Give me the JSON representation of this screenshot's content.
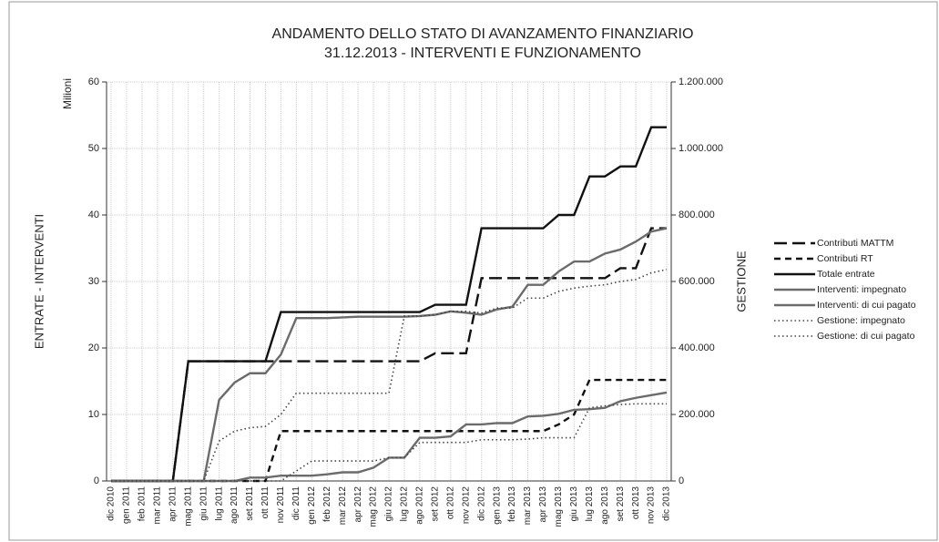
{
  "chart_data": {
    "type": "line",
    "title": [
      "ANDAMENTO DELLO STATO DI AVANZAMENTO FINANZIARIO",
      "31.12.2013 - INTERVENTI E FUNZIONAMENTO"
    ],
    "y_label": "ENTRATE - INTERVENTI",
    "y_unit": "Milioni",
    "y2_label": "GESTIONE",
    "categories": [
      "dic 2010",
      "gen 2011",
      "feb 2011",
      "mar 2011",
      "apr 2011",
      "mag 2011",
      "giu 2011",
      "lug 2011",
      "ago 2011",
      "set 2011",
      "ott 2011",
      "nov 2011",
      "dic 2011",
      "gen 2012",
      "feb 2012",
      "mar 2012",
      "apr 2012",
      "mag 2012",
      "giu 2012",
      "lug 2012",
      "ago 2012",
      "set 2012",
      "ott 2012",
      "nov 2012",
      "dic 2012",
      "gen 2013",
      "feb 2013",
      "mar 2013",
      "apr 2013",
      "mag 2013",
      "giu 2013",
      "lug 2013",
      "ago 2013",
      "set 2013",
      "ott 2013",
      "nov 2013",
      "dic 2013"
    ],
    "ylim": [
      0,
      60
    ],
    "yticks": [
      0,
      10,
      20,
      30,
      40,
      50,
      60
    ],
    "y2lim": [
      0,
      1200000
    ],
    "y2ticks": [
      0,
      {
        "value": 200000,
        "label": "200.000"
      },
      {
        "value": 400000,
        "label": "400.000"
      },
      {
        "value": 600000,
        "label": "600.000"
      },
      {
        "value": 800000,
        "label": "800.000"
      },
      {
        "value": 1000000,
        "label": "1.000.000"
      },
      {
        "value": 1200000,
        "label": "1.200.000"
      }
    ],
    "grid": true,
    "legend": "right",
    "series": [
      {
        "name": "Contributi MATTM",
        "color": "#111111",
        "dash": "long",
        "values": [
          0,
          0,
          0,
          0,
          0,
          18,
          18,
          18,
          18,
          18,
          18,
          18,
          18,
          18,
          18,
          18,
          18,
          18,
          18,
          18,
          18,
          19.2,
          19.2,
          19.2,
          30.5,
          30.5,
          30.5,
          30.5,
          30.5,
          30.5,
          30.5,
          30.5,
          30.5,
          32,
          32,
          38,
          38
        ]
      },
      {
        "name": "Contributi RT",
        "color": "#111111",
        "dash": "short",
        "values": [
          0,
          0,
          0,
          0,
          0,
          0,
          0,
          0,
          0,
          0,
          0,
          7.5,
          7.5,
          7.5,
          7.5,
          7.5,
          7.5,
          7.5,
          7.5,
          7.5,
          7.5,
          7.5,
          7.5,
          7.5,
          7.5,
          7.5,
          7.5,
          7.5,
          7.5,
          8.5,
          10,
          15.2,
          15.2,
          15.2,
          15.2,
          15.2,
          15.2
        ]
      },
      {
        "name": "Totale entrate",
        "color": "#111111",
        "dash": "solid",
        "values": [
          0,
          0,
          0,
          0,
          0,
          18,
          18,
          18,
          18,
          18,
          18,
          25.4,
          25.4,
          25.4,
          25.4,
          25.4,
          25.4,
          25.4,
          25.4,
          25.4,
          25.4,
          26.5,
          26.5,
          26.5,
          38,
          38,
          38,
          38,
          38,
          40,
          40,
          45.8,
          45.8,
          47.3,
          47.3,
          53.2,
          53.2
        ]
      },
      {
        "name": "Interventi: impegnato",
        "color": "#6b6b6b",
        "dash": "solid",
        "values": [
          0,
          0,
          0,
          0,
          0,
          0,
          0,
          12.2,
          14.8,
          16.2,
          16.2,
          19,
          24.5,
          24.5,
          24.5,
          24.6,
          24.7,
          24.7,
          24.7,
          24.7,
          24.8,
          25,
          25.5,
          25.3,
          25,
          25.8,
          26.2,
          29.5,
          29.5,
          31.5,
          33,
          33,
          34.2,
          34.8,
          36,
          37.5,
          38
        ]
      },
      {
        "name": "Interventi: di cui pagato",
        "color": "#6b6b6b",
        "dash": "solid",
        "values": [
          0,
          0,
          0,
          0,
          0,
          0,
          0,
          0,
          0,
          0.5,
          0.5,
          0.8,
          0.8,
          0.8,
          1,
          1.3,
          1.3,
          2,
          3.5,
          3.5,
          6.5,
          6.5,
          6.7,
          8.5,
          8.5,
          8.7,
          8.7,
          9.7,
          9.8,
          10.1,
          10.7,
          10.8,
          11,
          12,
          12.5,
          12.9,
          13.3
        ]
      },
      {
        "name": "Gestione: impegnato",
        "color": "#444444",
        "dash": "dot",
        "axis": "y2",
        "values": [
          0,
          0,
          0,
          0,
          0,
          0,
          0,
          120000,
          150000,
          160000,
          164000,
          200000,
          264000,
          264000,
          264000,
          264000,
          264000,
          264000,
          264000,
          496000,
          496000,
          500000,
          510000,
          510000,
          505000,
          520000,
          520000,
          550000,
          550000,
          570000,
          580000,
          586000,
          590000,
          600000,
          606000,
          626000,
          636000
        ]
      },
      {
        "name": "Gestione: di cui pagato",
        "color": "#444444",
        "dash": "dot",
        "axis": "y2",
        "values": [
          0,
          0,
          0,
          0,
          0,
          0,
          0,
          0,
          0,
          0,
          0,
          0,
          30000,
          60000,
          60000,
          60000,
          60000,
          60000,
          70000,
          70000,
          116000,
          116000,
          116000,
          116000,
          124000,
          124000,
          124000,
          126000,
          130000,
          130000,
          130000,
          220000,
          226000,
          230000,
          232000,
          232000,
          232000
        ]
      }
    ]
  }
}
